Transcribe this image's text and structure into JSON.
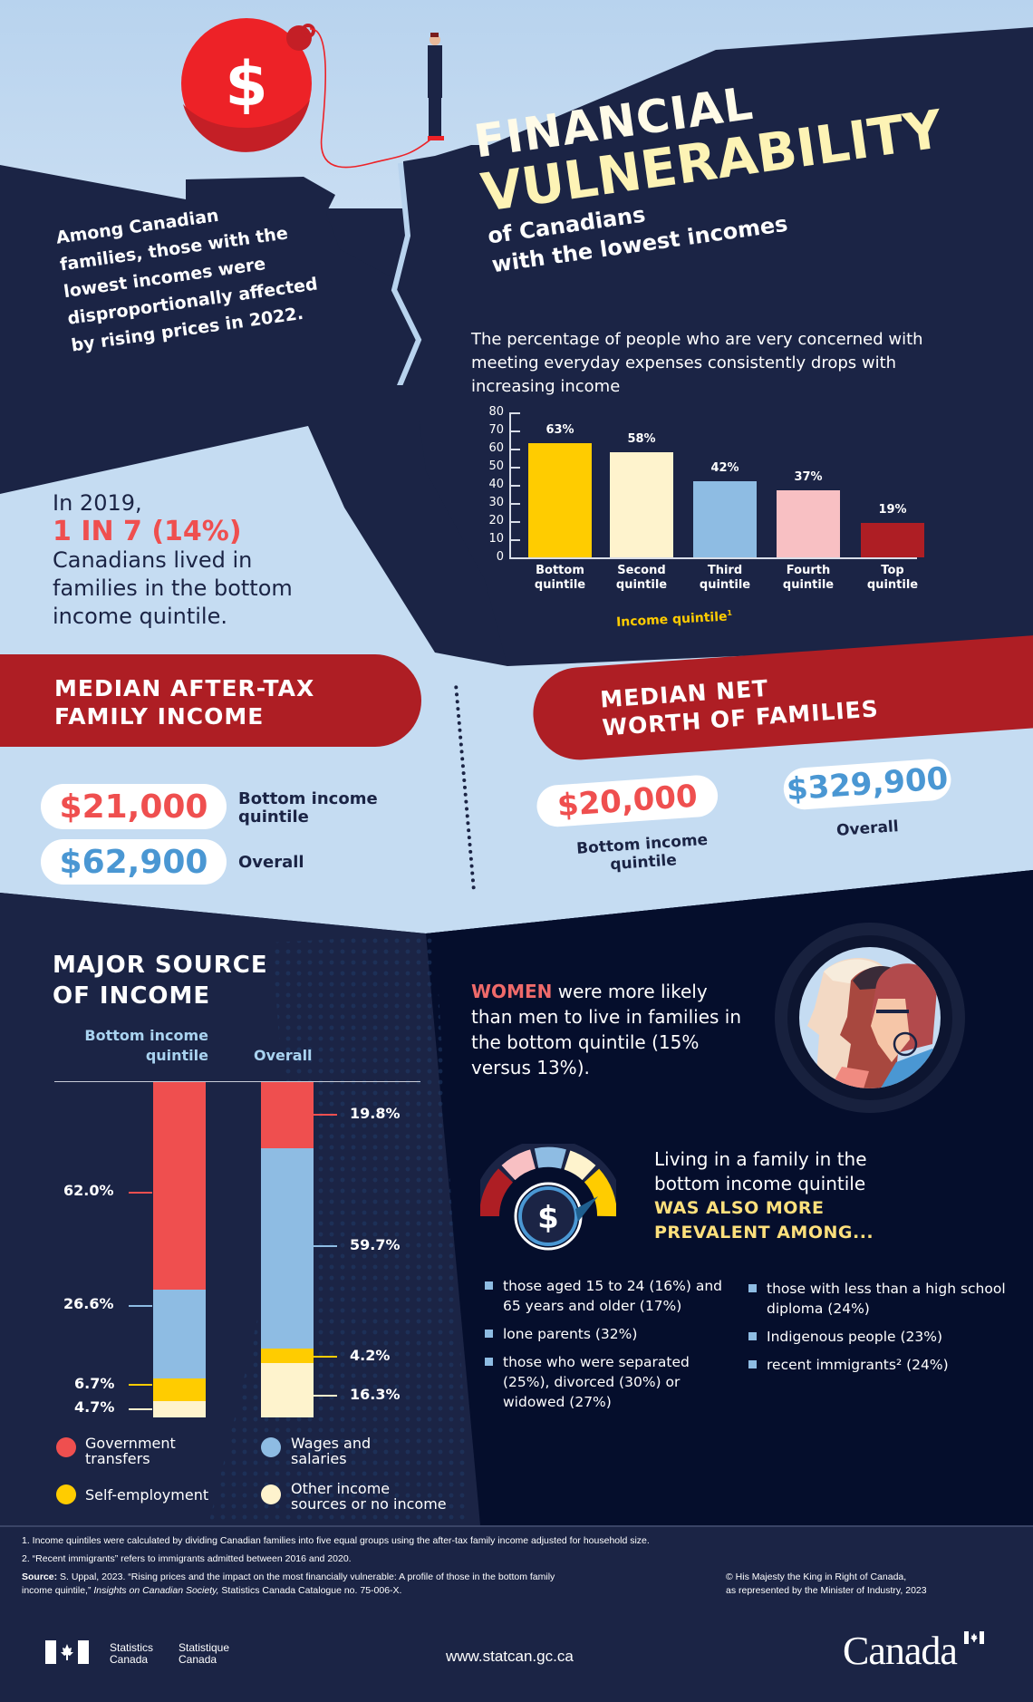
{
  "intro": {
    "lines": [
      "Among Canadian",
      "families, those with the",
      "lowest incomes were",
      "disproportionally affected",
      "by rising prices in 2022."
    ]
  },
  "illustration": {
    "ball_symbol": "$"
  },
  "title": {
    "line1": "FINANCIAL",
    "line2": "VULNERABILITY",
    "line3": "of Canadians",
    "line4": "with the lowest incomes"
  },
  "chart_description": "The percentage of people who are very concerned with meeting everyday expenses consistently drops with increasing income",
  "chart_data": [
    {
      "type": "bar",
      "title": "The percentage of people who are very concerned with meeting everyday expenses consistently drops with increasing income",
      "categories": [
        "Bottom quintile",
        "Second quintile",
        "Third quintile",
        "Fourth quintile",
        "Top quintile"
      ],
      "category_lines": [
        [
          "Bottom",
          "quintile"
        ],
        [
          "Second",
          "quintile"
        ],
        [
          "Third",
          "quintile"
        ],
        [
          "Fourth",
          "quintile"
        ],
        [
          "Top",
          "quintile"
        ]
      ],
      "values": [
        63,
        58,
        42,
        37,
        19
      ],
      "value_labels": [
        "63%",
        "58%",
        "42%",
        "37%",
        "19%"
      ],
      "colors": [
        "#ffcc00",
        "#fef3cd",
        "#8ebce3",
        "#f8c0c3",
        "#ae1e24"
      ],
      "xlabel": "Income quintile",
      "xlabel_footnote": "1",
      "ylabel": "",
      "ylim": [
        0,
        80
      ],
      "yticks": [
        0,
        10,
        20,
        30,
        40,
        50,
        60,
        70,
        80
      ],
      "grid": false,
      "legend": "none"
    },
    {
      "type": "bar",
      "subtype": "stacked",
      "title": "MAJOR SOURCE OF INCOME",
      "categories": [
        "Bottom income quintile",
        "Overall"
      ],
      "series": [
        {
          "name": "Government transfers",
          "color": "#ef4f4f",
          "values": [
            62.0,
            19.8
          ]
        },
        {
          "name": "Wages and salaries",
          "color": "#8ebce3",
          "values": [
            26.6,
            59.7
          ]
        },
        {
          "name": "Self-employment",
          "color": "#ffcc00",
          "values": [
            6.7,
            4.2
          ]
        },
        {
          "name": "Other income sources or no income",
          "color": "#fef3cd",
          "values": [
            4.7,
            16.3
          ]
        }
      ],
      "unit": "%",
      "legend_position": "bottom"
    }
  ],
  "stat_2019": {
    "lead": "In 2019,",
    "highlight": "1 IN 7 (14%)",
    "lines": [
      "Canadians lived in",
      "families in the bottom",
      "income quintile."
    ]
  },
  "median_income": {
    "heading_line1": "MEDIAN AFTER-TAX",
    "heading_line2": "FAMILY INCOME",
    "bottom_value": "$21,000",
    "bottom_label_line1": "Bottom income",
    "bottom_label_line2": "quintile",
    "overall_value": "$62,900",
    "overall_label": "Overall"
  },
  "net_worth": {
    "heading_line1": "MEDIAN NET",
    "heading_line2": "WORTH OF FAMILIES",
    "bottom_value": "$20,000",
    "bottom_label_line1": "Bottom income",
    "bottom_label_line2": "quintile",
    "overall_value": "$329,900",
    "overall_label": "Overall"
  },
  "major_source": {
    "title_line1": "MAJOR SOURCE",
    "title_line2": "OF INCOME",
    "col1_line1": "Bottom income",
    "col1_line2": "quintile",
    "col2": "Overall",
    "bottom_labels": [
      "62.0%",
      "26.6%",
      "6.7%",
      "4.7%"
    ],
    "overall_labels": [
      "19.8%",
      "59.7%",
      "4.2%",
      "16.3%"
    ],
    "legend": [
      {
        "line1": "Government",
        "line2": "transfers",
        "color": "#ef4f4f"
      },
      {
        "line1": "Wages and",
        "line2": "salaries",
        "color": "#8ebce3"
      },
      {
        "line1": "Self-employment",
        "line2": "",
        "color": "#ffcc00"
      },
      {
        "line1": "Other income",
        "line2": "sources or no income",
        "color": "#fef3cd"
      }
    ]
  },
  "women": {
    "strong": "WOMEN",
    "rest": " were more likely than men to live in families in the bottom quintile (15% versus 13%)."
  },
  "prevalent": {
    "lead": "Living in a family in the bottom income quintile",
    "strong_line1": "WAS ALSO MORE",
    "strong_line2": "PREVALENT AMONG...",
    "gauge_symbol": "$",
    "left_items": [
      "those aged 15 to 24 (16%) and 65 years and older (17%)",
      "lone parents (32%)",
      "those who were separated (25%), divorced (30%) or widowed (27%)"
    ],
    "right_items": [
      "those with less than a high school diploma (24%)",
      "Indigenous people (23%)",
      "recent immigrants² (24%)"
    ]
  },
  "footer": {
    "note1": "1. Income quintiles were calculated by dividing Canadian families into five equal groups using the after-tax family income adjusted for household size.",
    "note2": "2. “Recent immigrants” refers to immigrants admitted between 2016 and 2020.",
    "source_label": "Source:",
    "source_text_a": " S. Uppal, 2023. “Rising prices and the impact on the most financially vulnerable: A profile of those in the bottom family income quintile,” ",
    "source_italic": "Insights on Canadian Society,",
    "source_text_b": " Statistics Canada Catalogue no. 75-006-X.",
    "copyright_line1": "© His Majesty the King in Right of Canada,",
    "copyright_line2": "as represented by the Minister of Industry, 2023",
    "sc_en_line1": "Statistics",
    "sc_en_line2": "Canada",
    "sc_fr_line1": "Statistique",
    "sc_fr_line2": "Canada",
    "url": "www.statcan.gc.ca",
    "wordmark": "Canada"
  },
  "colors": {
    "navy": "#1b2445",
    "deep_navy": "#050e2c",
    "sky": "#c5dcf2",
    "red_banner": "#ae1e24",
    "coral": "#ef4f4f",
    "blue_value": "#4a97d3",
    "yellow": "#ffcc00",
    "cream": "#fef3cd"
  }
}
